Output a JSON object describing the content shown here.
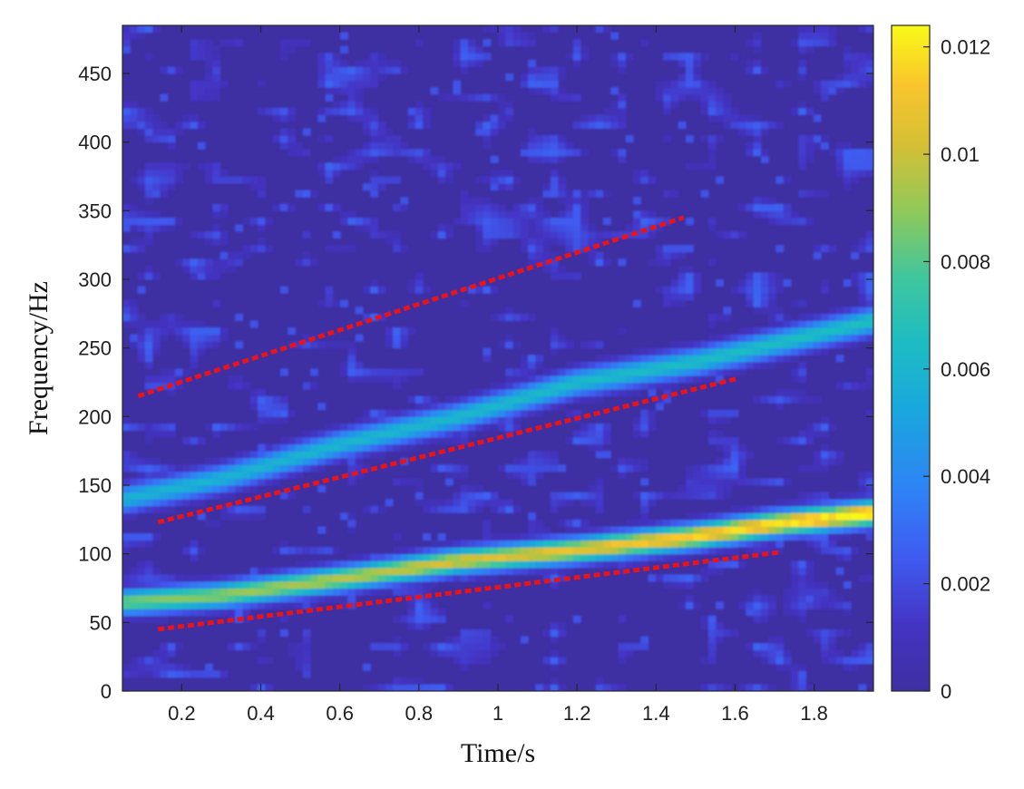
{
  "chart_data": {
    "type": "heatmap",
    "title": "",
    "xlabel": "Time/s",
    "ylabel": "Frequency/Hz",
    "xlim": [
      0.05,
      1.95
    ],
    "ylim": [
      0,
      485
    ],
    "xticks": [
      0.2,
      0.4,
      0.6,
      0.8,
      1,
      1.2,
      1.4,
      1.6,
      1.8
    ],
    "xtick_labels": [
      "0.2",
      "0.4",
      "0.6",
      "0.8",
      "1",
      "1.2",
      "1.4",
      "1.6",
      "1.8"
    ],
    "yticks": [
      0,
      50,
      100,
      150,
      200,
      250,
      300,
      350,
      400,
      450
    ],
    "ytick_labels": [
      "0",
      "50",
      "100",
      "150",
      "200",
      "250",
      "300",
      "350",
      "400",
      "450"
    ],
    "grid": false,
    "colormap": "parula",
    "colorbar": {
      "range": [
        0,
        0.0124
      ],
      "ticks": [
        0,
        0.002,
        0.004,
        0.006,
        0.008,
        0.01,
        0.012
      ],
      "tick_labels": [
        "0",
        "0.002",
        "0.004",
        "0.006",
        "0.008",
        "0.01",
        "0.012"
      ]
    },
    "ridges": [
      {
        "points": [
          [
            0.05,
            65
          ],
          [
            0.3,
            70
          ],
          [
            0.6,
            82
          ],
          [
            0.9,
            95
          ],
          [
            1.2,
            103
          ],
          [
            1.5,
            113
          ],
          [
            1.7,
            122
          ],
          [
            1.95,
            130
          ]
        ],
        "peak": [
          0.0085,
          0.0124
        ],
        "width_hz": 9
      },
      {
        "points": [
          [
            0.05,
            140
          ],
          [
            0.3,
            155
          ],
          [
            0.6,
            180
          ],
          [
            0.9,
            200
          ],
          [
            1.2,
            225
          ],
          [
            1.5,
            240
          ],
          [
            1.95,
            270
          ]
        ],
        "peak": [
          0.0058,
          0.0066
        ],
        "width_hz": 10
      }
    ],
    "annotations": [
      {
        "type": "dashed-line",
        "color": "#e8141b",
        "from": [
          0.09,
          215
        ],
        "to": [
          1.47,
          345
        ]
      },
      {
        "type": "dashed-line",
        "color": "#e8141b",
        "from": [
          0.14,
          123
        ],
        "to": [
          1.61,
          228
        ]
      },
      {
        "type": "dashed-line",
        "color": "#e8141b",
        "from": [
          0.14,
          45
        ],
        "to": [
          1.71,
          101
        ]
      }
    ],
    "colors": {
      "background": "#3e2fa2",
      "annotation": "#e8141b"
    }
  }
}
